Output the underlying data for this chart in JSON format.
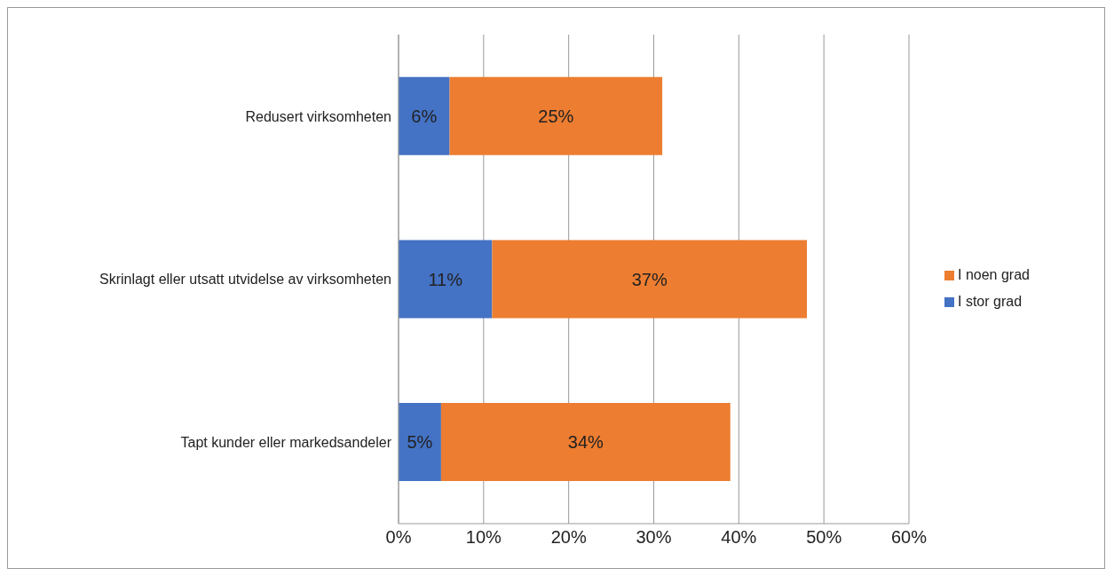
{
  "chart_data": {
    "type": "bar",
    "orientation": "horizontal",
    "stacked": true,
    "categories": [
      "Redusert virksomheten",
      "Skrinlagt eller utsatt utvidelse av virksomheten",
      "Tapt kunder eller markedsandeler"
    ],
    "series": [
      {
        "name": "I stor grad",
        "color": "#4472c4",
        "values": [
          6,
          11,
          5
        ],
        "value_labels": [
          "6%",
          "11%",
          "5%"
        ]
      },
      {
        "name": "I noen grad",
        "color": "#ed7d31",
        "values": [
          25,
          37,
          34
        ],
        "value_labels": [
          "25%",
          "37%",
          "34%"
        ]
      }
    ],
    "xlim": [
      0,
      60
    ],
    "xticks": [
      {
        "value": 0,
        "label": "0%"
      },
      {
        "value": 10,
        "label": "10%"
      },
      {
        "value": 20,
        "label": "20%"
      },
      {
        "value": 30,
        "label": "30%"
      },
      {
        "value": 40,
        "label": "40%"
      },
      {
        "value": 50,
        "label": "50%"
      },
      {
        "value": 60,
        "label": "60%"
      }
    ],
    "grid": "x",
    "legend": "right"
  }
}
